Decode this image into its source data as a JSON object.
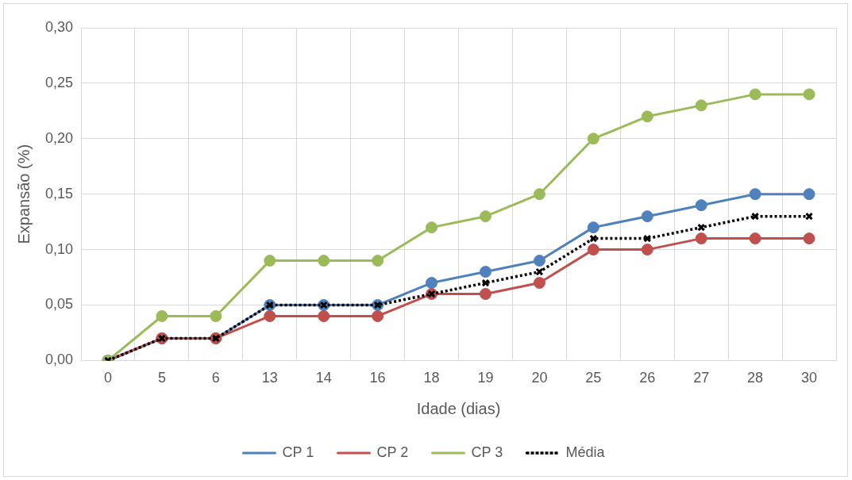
{
  "chart_data": {
    "type": "line",
    "xlabel": "Idade (dias)",
    "ylabel": "Expansão (%)",
    "categories": [
      "0",
      "5",
      "6",
      "13",
      "14",
      "16",
      "18",
      "19",
      "20",
      "25",
      "26",
      "27",
      "28",
      "30"
    ],
    "series": [
      {
        "name": "CP 1",
        "color": "#4f81bd",
        "marker": "circle",
        "line_style": "solid",
        "values": [
          0,
          0.02,
          0.02,
          0.05,
          0.05,
          0.05,
          0.07,
          0.08,
          0.09,
          0.12,
          0.13,
          0.14,
          0.15,
          0.15
        ]
      },
      {
        "name": "CP 2",
        "color": "#c0504d",
        "marker": "circle",
        "line_style": "solid",
        "values": [
          0,
          0.02,
          0.02,
          0.04,
          0.04,
          0.04,
          0.06,
          0.06,
          0.07,
          0.1,
          0.1,
          0.11,
          0.11,
          0.11
        ]
      },
      {
        "name": "CP 3",
        "color": "#9bbb59",
        "marker": "circle",
        "line_style": "solid",
        "values": [
          0,
          0.04,
          0.04,
          0.09,
          0.09,
          0.09,
          0.12,
          0.13,
          0.15,
          0.2,
          0.22,
          0.23,
          0.24,
          0.24
        ]
      },
      {
        "name": "Média",
        "color": "#000000",
        "marker": "cross",
        "line_style": "dotted",
        "values": [
          0,
          0.02,
          0.02,
          0.05,
          0.05,
          0.05,
          0.06,
          0.07,
          0.08,
          0.11,
          0.11,
          0.12,
          0.13,
          0.13
        ]
      }
    ],
    "ylim": [
      0,
      0.3
    ],
    "yticks": [
      {
        "value": 0,
        "label": "0,00"
      },
      {
        "value": 0.05,
        "label": "0,05"
      },
      {
        "value": 0.1,
        "label": "0,10"
      },
      {
        "value": 0.15,
        "label": "0,15"
      },
      {
        "value": 0.2,
        "label": "0,20"
      },
      {
        "value": 0.25,
        "label": "0,25"
      },
      {
        "value": 0.3,
        "label": "0,30"
      }
    ],
    "grid": true,
    "legend": "bottom"
  }
}
